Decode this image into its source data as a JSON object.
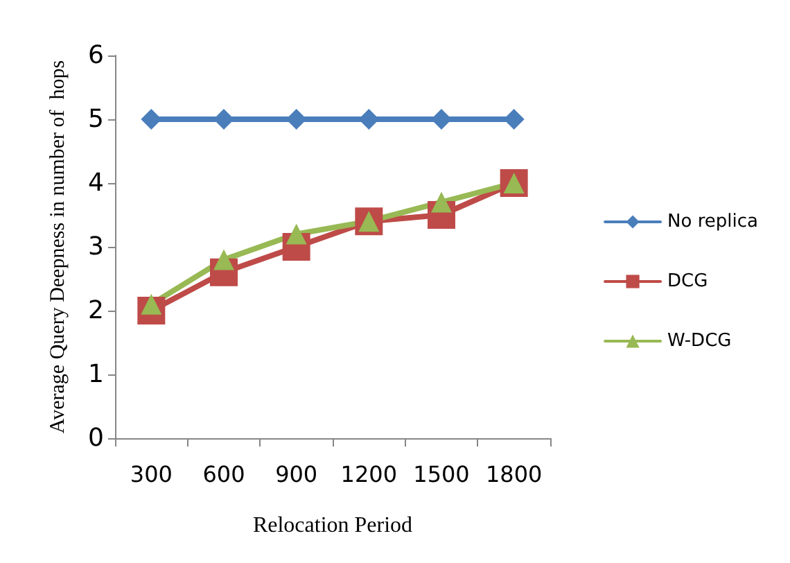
{
  "chart_data": {
    "type": "line",
    "xlabel": "Relocation Period",
    "ylabel": "Average Query Deepness in number of  hops",
    "categories": [
      "300",
      "600",
      "900",
      "1200",
      "1500",
      "1800"
    ],
    "series": [
      {
        "name": "No replica",
        "color": "#4a7ebb",
        "values": [
          5,
          5,
          5,
          5,
          5,
          5
        ],
        "marker": "diamond"
      },
      {
        "name": "DCG",
        "color": "#be4b48",
        "values": [
          2,
          2.6,
          3,
          3.4,
          3.5,
          4
        ],
        "marker": "square"
      },
      {
        "name": "W-DCG",
        "color": "#98b954",
        "values": [
          2.1,
          2.8,
          3.2,
          3.4,
          3.7,
          4
        ],
        "marker": "triangle"
      }
    ],
    "ylim": [
      0,
      6
    ],
    "yticks": [
      0,
      1,
      2,
      3,
      4,
      5,
      6
    ],
    "grid": false,
    "legend": "right",
    "line_style": "solid"
  }
}
